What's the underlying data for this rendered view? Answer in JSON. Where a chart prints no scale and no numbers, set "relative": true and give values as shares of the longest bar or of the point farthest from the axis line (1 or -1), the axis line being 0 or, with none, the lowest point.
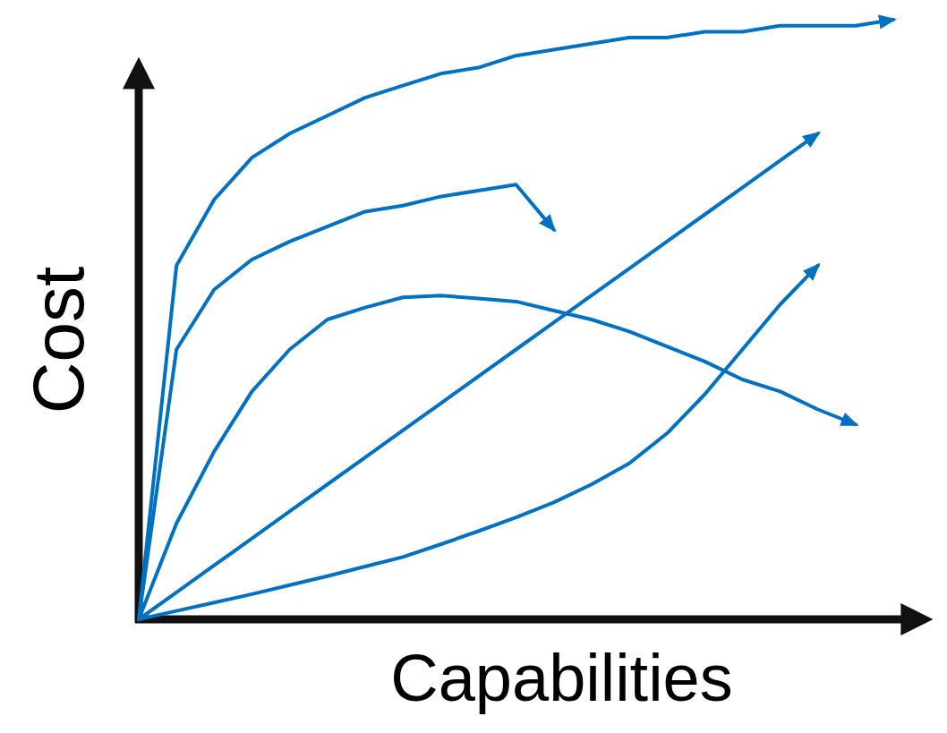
{
  "chart_data": {
    "type": "line",
    "relative": true,
    "xlabel": "Capabilities",
    "ylabel": "Cost",
    "line_style": "solid",
    "categories": [
      null,
      null,
      null,
      null,
      null,
      null,
      null,
      null,
      null,
      null,
      null,
      null,
      null,
      null,
      null,
      null,
      null,
      null,
      null,
      null,
      null
    ],
    "series": [
      {
        "color": "#0070c0",
        "values": [
          0,
          0.59,
          0.7,
          0.77,
          0.81,
          0.84,
          0.87,
          0.89,
          0.91,
          0.92,
          0.94,
          0.95,
          0.96,
          0.97,
          0.97,
          0.98,
          0.98,
          0.99,
          0.99,
          0.99,
          1.0
        ]
      },
      {
        "color": "#0070c0",
        "values": [
          0,
          0.45,
          0.55,
          0.6,
          0.63,
          0.655,
          0.68,
          0.69,
          0.705,
          0.715,
          0.725,
          0.65,
          null,
          null,
          null,
          null,
          null,
          null,
          null,
          null,
          null
        ]
      },
      {
        "color": "#0070c0",
        "values": [
          0,
          0.16,
          0.28,
          0.38,
          0.45,
          0.5,
          0.52,
          0.537,
          0.54,
          0.535,
          0.53,
          0.515,
          0.5,
          0.48,
          0.455,
          0.43,
          0.4,
          0.38,
          0.35,
          0.325,
          null
        ]
      },
      {
        "color": "#0070c0",
        "values": [
          0,
          0.045,
          0.09,
          0.135,
          0.18,
          0.225,
          0.27,
          0.315,
          0.36,
          0.405,
          0.45,
          0.495,
          0.54,
          0.585,
          0.63,
          0.675,
          0.72,
          0.765,
          0.81,
          null,
          null
        ]
      },
      {
        "color": "#0070c0",
        "values": [
          0,
          0.014,
          0.028,
          0.042,
          0.057,
          0.072,
          0.088,
          0.104,
          0.125,
          0.147,
          0.17,
          0.195,
          0.225,
          0.26,
          0.31,
          0.375,
          0.45,
          0.525,
          0.59,
          null,
          null
        ]
      }
    ]
  }
}
